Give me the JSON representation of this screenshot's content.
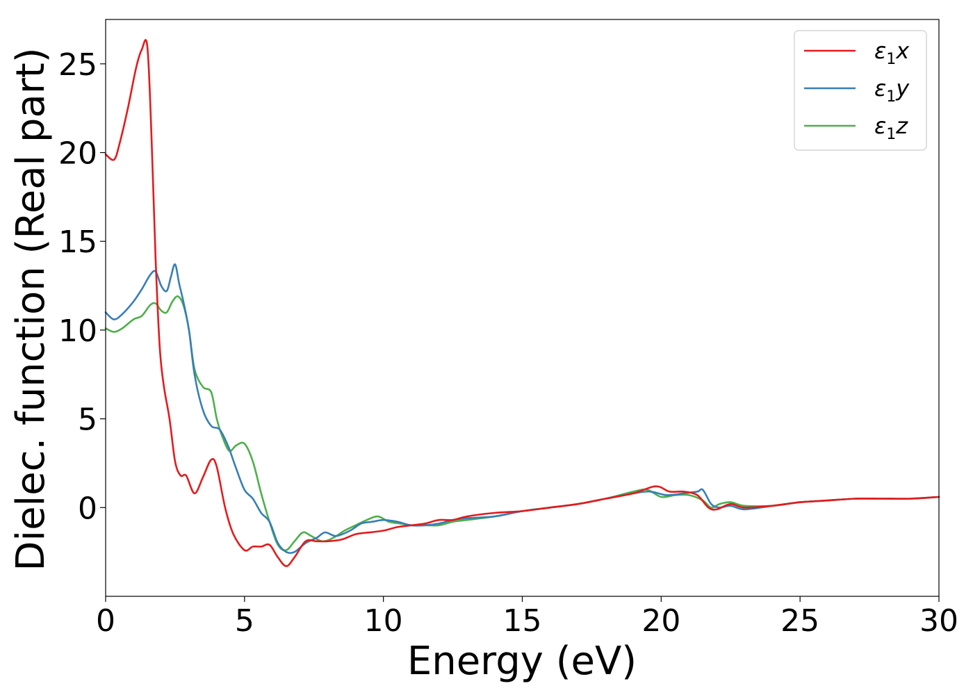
{
  "chart_data": {
    "type": "line",
    "xlabel": "Energy (eV)",
    "ylabel": "Dielec. function (Real part)",
    "xlim": [
      0,
      30
    ],
    "ylim": [
      -5.0,
      27.5
    ],
    "xticks": [
      0,
      5,
      10,
      15,
      20,
      25,
      30
    ],
    "yticks": [
      0,
      5,
      10,
      15,
      20,
      25
    ],
    "grid": false,
    "legend_position": "top-right",
    "series": [
      {
        "name": "ε₁x",
        "legend": {
          "symbol": "ε",
          "sub": "1",
          "var": "x"
        },
        "color": "#e41a1c",
        "x": [
          0,
          0.3,
          0.5,
          0.8,
          1.1,
          1.3,
          1.5,
          1.65,
          1.8,
          1.95,
          2.1,
          2.3,
          2.5,
          2.7,
          2.9,
          3.2,
          3.5,
          3.8,
          4.0,
          4.3,
          4.6,
          5.0,
          5.3,
          5.6,
          5.9,
          6.2,
          6.5,
          6.8,
          7.2,
          7.6,
          8.0,
          8.5,
          9.0,
          9.5,
          10.0,
          10.5,
          11.0,
          11.5,
          12.0,
          12.5,
          13.0,
          14.0,
          15.0,
          16.0,
          17.0,
          18.0,
          19.0,
          19.8,
          20.3,
          20.8,
          21.3,
          21.7,
          22.0,
          22.5,
          23.0,
          24.0,
          25.0,
          26.0,
          27.0,
          28.0,
          29.0,
          30.0
        ],
        "y": [
          19.9,
          19.6,
          20.5,
          22.5,
          24.8,
          25.8,
          26.0,
          21.0,
          14.0,
          9.0,
          6.8,
          5.0,
          2.6,
          1.8,
          1.8,
          0.8,
          1.7,
          2.7,
          2.3,
          0.0,
          -1.5,
          -2.4,
          -2.2,
          -2.2,
          -2.1,
          -2.8,
          -3.3,
          -2.8,
          -1.9,
          -1.9,
          -1.9,
          -1.8,
          -1.5,
          -1.4,
          -1.3,
          -1.1,
          -1.0,
          -0.9,
          -0.7,
          -0.7,
          -0.5,
          -0.3,
          -0.2,
          0.0,
          0.2,
          0.5,
          0.8,
          1.2,
          0.9,
          0.9,
          0.7,
          0.0,
          -0.1,
          0.2,
          0.0,
          0.1,
          0.3,
          0.4,
          0.5,
          0.5,
          0.5,
          0.6
        ]
      },
      {
        "name": "ε₁y",
        "legend": {
          "symbol": "ε",
          "sub": "1",
          "var": "y"
        },
        "color": "#377eb8",
        "x": [
          0,
          0.3,
          0.6,
          1.0,
          1.3,
          1.6,
          1.8,
          2.0,
          2.2,
          2.35,
          2.5,
          2.65,
          2.8,
          3.0,
          3.2,
          3.5,
          3.8,
          4.1,
          4.4,
          4.7,
          5.0,
          5.3,
          5.6,
          5.9,
          6.2,
          6.5,
          6.8,
          7.2,
          7.6,
          7.9,
          8.3,
          8.8,
          9.2,
          9.6,
          10.0,
          10.5,
          11.0,
          11.5,
          12.0,
          12.5,
          13.0,
          14.0,
          15.0,
          16.0,
          17.0,
          18.0,
          19.0,
          19.6,
          20.2,
          20.8,
          21.3,
          21.5,
          21.8,
          22.1,
          22.5,
          23.0,
          24.0,
          25.0,
          26.0,
          27.0,
          28.0,
          29.0,
          30.0
        ],
        "y": [
          11.0,
          10.6,
          10.9,
          11.6,
          12.3,
          13.1,
          13.3,
          12.5,
          12.2,
          13.0,
          13.7,
          12.6,
          11.6,
          10.0,
          7.5,
          5.5,
          4.6,
          4.4,
          3.5,
          2.2,
          1.0,
          0.5,
          -0.3,
          -0.8,
          -2.0,
          -2.5,
          -2.5,
          -2.0,
          -1.7,
          -1.4,
          -1.6,
          -1.3,
          -0.9,
          -0.8,
          -0.7,
          -0.8,
          -1.0,
          -1.0,
          -0.9,
          -0.7,
          -0.6,
          -0.5,
          -0.2,
          0.0,
          0.2,
          0.5,
          0.8,
          0.9,
          0.7,
          0.8,
          0.9,
          1.0,
          0.2,
          0.0,
          0.1,
          -0.1,
          0.1,
          0.3,
          0.4,
          0.5,
          0.5,
          0.5,
          0.6
        ]
      },
      {
        "name": "ε₁z",
        "legend": {
          "symbol": "ε",
          "sub": "1",
          "var": "z"
        },
        "color": "#4daf4a",
        "x": [
          0,
          0.3,
          0.6,
          1.0,
          1.3,
          1.6,
          1.8,
          2.0,
          2.2,
          2.4,
          2.6,
          2.8,
          3.0,
          3.2,
          3.5,
          3.8,
          4.0,
          4.2,
          4.45,
          4.7,
          5.0,
          5.3,
          5.6,
          5.9,
          6.2,
          6.5,
          6.8,
          7.1,
          7.4,
          7.8,
          8.2,
          8.6,
          9.0,
          9.4,
          9.8,
          10.2,
          10.6,
          11.0,
          11.5,
          12.0,
          12.5,
          13.0,
          14.0,
          15.0,
          16.0,
          17.0,
          18.0,
          19.0,
          19.5,
          20.0,
          20.5,
          21.0,
          21.5,
          21.8,
          22.1,
          22.5,
          23.0,
          24.0,
          25.0,
          26.0,
          27.0,
          28.0,
          29.0,
          30.0
        ],
        "y": [
          10.1,
          9.9,
          10.1,
          10.6,
          10.8,
          11.4,
          11.5,
          11.1,
          11.0,
          11.6,
          11.9,
          11.4,
          10.0,
          7.8,
          6.8,
          6.5,
          5.0,
          4.0,
          3.2,
          3.5,
          3.6,
          2.6,
          0.8,
          -0.8,
          -2.1,
          -2.4,
          -1.9,
          -1.4,
          -1.6,
          -1.9,
          -1.7,
          -1.3,
          -1.0,
          -0.7,
          -0.5,
          -0.8,
          -0.9,
          -1.0,
          -1.0,
          -1.0,
          -0.8,
          -0.7,
          -0.5,
          -0.2,
          0.0,
          0.2,
          0.5,
          0.9,
          1.0,
          0.6,
          0.7,
          0.7,
          0.4,
          0.0,
          0.2,
          0.3,
          0.1,
          0.1,
          0.3,
          0.4,
          0.5,
          0.5,
          0.5,
          0.6
        ]
      }
    ]
  }
}
